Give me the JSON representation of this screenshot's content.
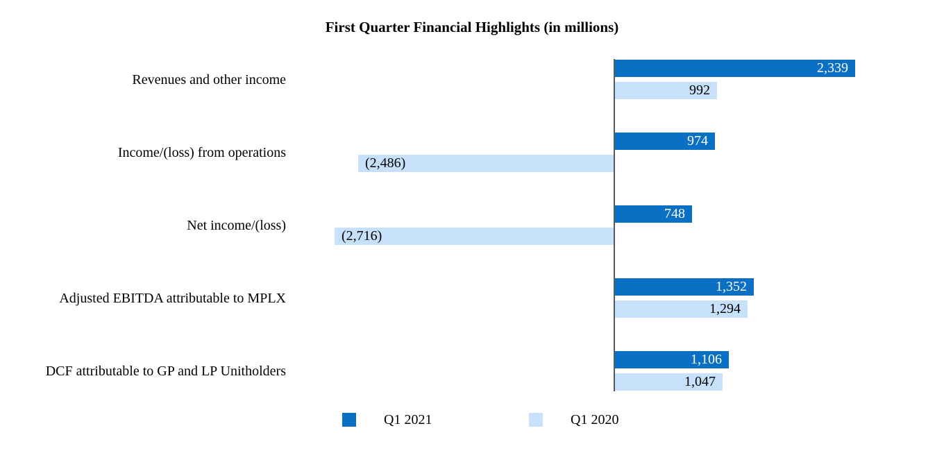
{
  "chart_data": {
    "type": "bar",
    "orientation": "horizontal",
    "title": "First Quarter Financial Highlights (in millions)",
    "categories": [
      "Revenues and other income",
      "Income/(loss) from operations",
      "Net income/(loss)",
      "Adjusted EBITDA attributable to MPLX",
      "DCF attributable to GP and LP Unitholders"
    ],
    "series": [
      {
        "name": "Q1 2021",
        "color": "#0b70c4",
        "value_label_color": "#ffffff",
        "values": [
          2339,
          974,
          748,
          1352,
          1106
        ],
        "value_labels": [
          "2,339",
          "974",
          "748",
          "1,352",
          "1,106"
        ]
      },
      {
        "name": "Q1 2020",
        "color": "#c6e1f9",
        "value_label_color": "#000000",
        "values": [
          992,
          -2486,
          -2716,
          1294,
          1047
        ],
        "value_labels": [
          "992",
          "(2,486)",
          "(2,716)",
          "1,294",
          "1,047"
        ]
      }
    ],
    "x_axis": {
      "min": -2950,
      "max": 2550,
      "zero_baseline": true,
      "axis_color": "#595959",
      "tick_labels_visible": false
    },
    "grid": false,
    "legend": {
      "position": "bottom",
      "entries": [
        "Q1 2021",
        "Q1 2020"
      ]
    }
  }
}
